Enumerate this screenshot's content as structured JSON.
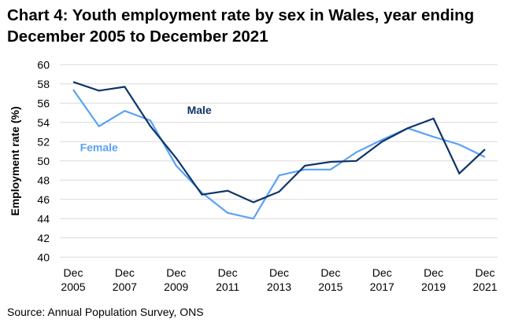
{
  "chart_data": {
    "type": "line",
    "title": "Chart 4: Youth employment rate by sex in Wales, year ending December 2005 to December 2021",
    "xlabel": "",
    "ylabel": "Employment rate (%)",
    "ylim": [
      40,
      60
    ],
    "yticks": [
      40,
      42,
      44,
      46,
      48,
      50,
      52,
      54,
      56,
      58,
      60
    ],
    "grid": true,
    "x": [
      2005,
      2006,
      2007,
      2008,
      2009,
      2010,
      2011,
      2012,
      2013,
      2014,
      2015,
      2016,
      2017,
      2018,
      2019,
      2020,
      2021
    ],
    "xtick_labels": [
      {
        "year": 2005,
        "line1": "Dec",
        "line2": "2005"
      },
      {
        "year": 2007,
        "line1": "Dec",
        "line2": "2007"
      },
      {
        "year": 2009,
        "line1": "Dec",
        "line2": "2009"
      },
      {
        "year": 2011,
        "line1": "Dec",
        "line2": "2011"
      },
      {
        "year": 2013,
        "line1": "Dec",
        "line2": "2013"
      },
      {
        "year": 2015,
        "line1": "Dec",
        "line2": "2015"
      },
      {
        "year": 2017,
        "line1": "Dec",
        "line2": "2017"
      },
      {
        "year": 2019,
        "line1": "Dec",
        "line2": "2019"
      },
      {
        "year": 2021,
        "line1": "Dec",
        "line2": "2021"
      }
    ],
    "series": [
      {
        "name": "Male",
        "color": "#0f3468",
        "label_at": [
          2009.9,
          54.9
        ],
        "values": [
          58.2,
          57.3,
          57.7,
          53.6,
          50.3,
          46.5,
          46.9,
          45.7,
          46.8,
          49.5,
          49.9,
          50.0,
          52.0,
          53.4,
          54.4,
          48.7,
          51.2
        ]
      },
      {
        "name": "Female",
        "color": "#5aa2f5",
        "label_at": [
          2006.0,
          51.0
        ],
        "values": [
          57.4,
          53.6,
          55.2,
          54.2,
          49.5,
          46.7,
          44.6,
          44.0,
          48.5,
          49.1,
          49.1,
          50.9,
          52.2,
          53.4,
          52.5,
          51.7,
          50.4
        ]
      }
    ],
    "legend": "inline labels"
  },
  "source": "Source: Annual Population Survey, ONS"
}
